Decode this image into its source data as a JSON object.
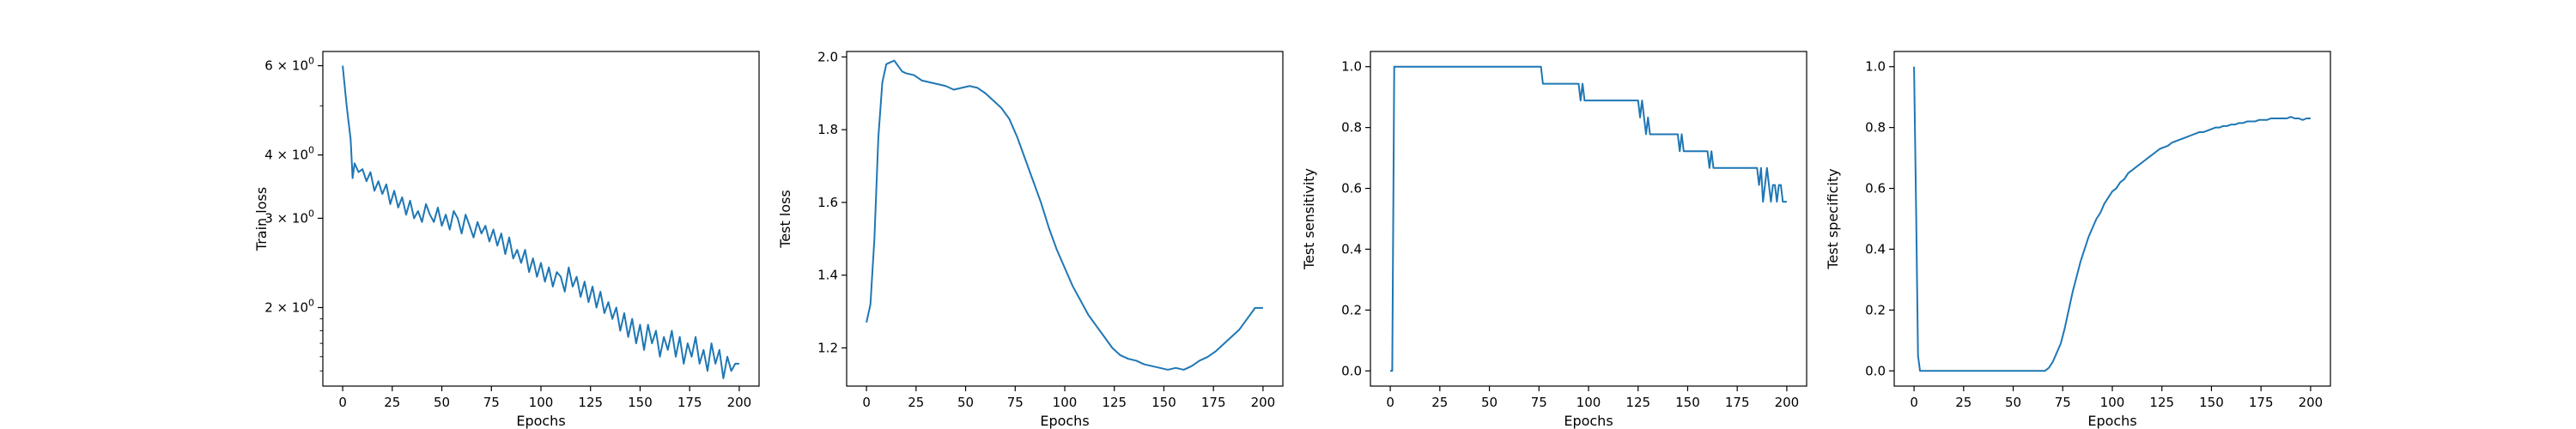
{
  "colors": {
    "series": "#1f77b4",
    "axis": "#000000",
    "background": "#ffffff"
  },
  "chart_data": [
    {
      "type": "line",
      "xlabel": "Epochs",
      "ylabel": "Train loss",
      "yscale": "log",
      "xlim": [
        -10,
        210
      ],
      "ylim": [
        1.4,
        6.4
      ],
      "grid": false,
      "xticks": [
        0,
        25,
        50,
        75,
        100,
        125,
        150,
        175,
        200
      ],
      "yticks": [
        {
          "value": 2,
          "base": "2 × 10",
          "exp": "0"
        },
        {
          "value": 3,
          "base": "3 × 10",
          "exp": "0"
        },
        {
          "value": 4,
          "base": "4 × 10",
          "exp": "0"
        },
        {
          "value": 6,
          "base": "6 × 10",
          "exp": "0"
        }
      ],
      "x": [
        0,
        2,
        4,
        5,
        6,
        8,
        10,
        12,
        14,
        16,
        18,
        20,
        22,
        24,
        26,
        28,
        30,
        32,
        34,
        36,
        38,
        40,
        42,
        44,
        46,
        48,
        50,
        52,
        54,
        56,
        58,
        60,
        62,
        64,
        66,
        68,
        70,
        72,
        74,
        76,
        78,
        80,
        82,
        84,
        86,
        88,
        90,
        92,
        94,
        96,
        98,
        100,
        102,
        104,
        106,
        108,
        110,
        112,
        114,
        116,
        118,
        120,
        122,
        124,
        126,
        128,
        130,
        132,
        134,
        136,
        138,
        140,
        142,
        144,
        146,
        148,
        150,
        152,
        154,
        156,
        158,
        160,
        162,
        164,
        166,
        168,
        170,
        172,
        174,
        176,
        178,
        180,
        182,
        184,
        186,
        188,
        190,
        192,
        194,
        196,
        198,
        200
      ],
      "values": [
        6.0,
        5.0,
        4.3,
        3.6,
        3.85,
        3.7,
        3.75,
        3.55,
        3.7,
        3.4,
        3.55,
        3.35,
        3.5,
        3.2,
        3.4,
        3.15,
        3.3,
        3.05,
        3.25,
        3.0,
        3.1,
        2.95,
        3.2,
        3.05,
        2.95,
        3.15,
        2.9,
        3.05,
        2.85,
        3.1,
        3.0,
        2.8,
        3.05,
        2.9,
        2.75,
        2.95,
        2.8,
        2.9,
        2.7,
        2.85,
        2.65,
        2.8,
        2.55,
        2.75,
        2.5,
        2.6,
        2.45,
        2.6,
        2.35,
        2.5,
        2.3,
        2.45,
        2.25,
        2.4,
        2.2,
        2.35,
        2.3,
        2.15,
        2.4,
        2.2,
        2.3,
        2.1,
        2.25,
        2.05,
        2.2,
        2.0,
        2.15,
        1.95,
        2.05,
        1.9,
        2.0,
        1.8,
        1.95,
        1.75,
        1.9,
        1.7,
        1.85,
        1.65,
        1.85,
        1.7,
        1.8,
        1.6,
        1.75,
        1.65,
        1.8,
        1.6,
        1.75,
        1.55,
        1.7,
        1.6,
        1.75,
        1.55,
        1.65,
        1.5,
        1.7,
        1.55,
        1.65,
        1.45,
        1.6,
        1.5,
        1.55,
        1.55
      ]
    },
    {
      "type": "line",
      "xlabel": "Epochs",
      "ylabel": "Test loss",
      "xlim": [
        -10,
        210
      ],
      "ylim": [
        1.095,
        2.015
      ],
      "grid": false,
      "xticks": [
        0,
        25,
        50,
        75,
        100,
        125,
        150,
        175,
        200
      ],
      "yticks": [
        1.2,
        1.4,
        1.6,
        1.8,
        2.0
      ],
      "x": [
        0,
        2,
        4,
        6,
        8,
        10,
        12,
        14,
        16,
        18,
        20,
        24,
        28,
        32,
        36,
        40,
        44,
        48,
        52,
        56,
        60,
        64,
        68,
        72,
        76,
        80,
        84,
        88,
        92,
        96,
        100,
        104,
        108,
        112,
        116,
        120,
        124,
        128,
        132,
        136,
        140,
        144,
        148,
        152,
        156,
        160,
        164,
        168,
        172,
        176,
        180,
        184,
        188,
        192,
        196,
        200
      ],
      "values": [
        1.27,
        1.32,
        1.5,
        1.78,
        1.93,
        1.98,
        1.985,
        1.99,
        1.975,
        1.96,
        1.955,
        1.95,
        1.935,
        1.93,
        1.925,
        1.92,
        1.91,
        1.915,
        1.92,
        1.915,
        1.9,
        1.88,
        1.86,
        1.83,
        1.78,
        1.72,
        1.66,
        1.6,
        1.53,
        1.47,
        1.42,
        1.37,
        1.33,
        1.29,
        1.26,
        1.23,
        1.2,
        1.18,
        1.17,
        1.165,
        1.155,
        1.15,
        1.145,
        1.14,
        1.145,
        1.14,
        1.15,
        1.165,
        1.175,
        1.19,
        1.21,
        1.23,
        1.25,
        1.28,
        1.31,
        1.31
      ]
    },
    {
      "type": "line",
      "xlabel": "Epochs",
      "ylabel": "Test sensitivity",
      "xlim": [
        -10,
        210
      ],
      "ylim": [
        -0.05,
        1.05
      ],
      "grid": false,
      "xticks": [
        0,
        25,
        50,
        75,
        100,
        125,
        150,
        175,
        200
      ],
      "yticks": [
        0.0,
        0.2,
        0.4,
        0.6,
        0.8,
        1.0
      ],
      "x": [
        0,
        1,
        2,
        3,
        76,
        77,
        95,
        96,
        97,
        98,
        99,
        100,
        125,
        126,
        127,
        128,
        129,
        130,
        131,
        132,
        145,
        146,
        147,
        148,
        150,
        151,
        160,
        161,
        162,
        163,
        185,
        186,
        187,
        188,
        189,
        190,
        191,
        192,
        193,
        194,
        195,
        196,
        197,
        198,
        199,
        200
      ],
      "values": [
        0.0,
        0.0,
        1.0,
        1.0,
        1.0,
        0.944,
        0.944,
        0.889,
        0.944,
        0.889,
        0.889,
        0.889,
        0.889,
        0.833,
        0.889,
        0.833,
        0.778,
        0.833,
        0.778,
        0.778,
        0.778,
        0.722,
        0.778,
        0.722,
        0.722,
        0.722,
        0.722,
        0.667,
        0.722,
        0.667,
        0.667,
        0.611,
        0.667,
        0.556,
        0.611,
        0.667,
        0.611,
        0.556,
        0.611,
        0.611,
        0.556,
        0.611,
        0.611,
        0.556,
        0.556,
        0.556
      ]
    },
    {
      "type": "line",
      "xlabel": "Epochs",
      "ylabel": "Test specificity",
      "xlim": [
        -10,
        210
      ],
      "ylim": [
        -0.05,
        1.05
      ],
      "grid": false,
      "xticks": [
        0,
        25,
        50,
        75,
        100,
        125,
        150,
        175,
        200
      ],
      "yticks": [
        0.0,
        0.2,
        0.4,
        0.6,
        0.8,
        1.0
      ],
      "x": [
        0,
        1,
        2,
        3,
        4,
        66,
        68,
        70,
        72,
        74,
        76,
        78,
        80,
        82,
        84,
        86,
        88,
        90,
        92,
        94,
        96,
        98,
        100,
        102,
        104,
        106,
        108,
        110,
        112,
        114,
        116,
        118,
        120,
        122,
        124,
        126,
        128,
        130,
        132,
        134,
        136,
        138,
        140,
        142,
        144,
        146,
        148,
        150,
        152,
        154,
        156,
        158,
        160,
        162,
        164,
        166,
        168,
        170,
        172,
        174,
        176,
        178,
        180,
        182,
        184,
        186,
        188,
        190,
        192,
        194,
        196,
        198,
        200
      ],
      "values": [
        1.0,
        0.55,
        0.05,
        0.0,
        0.0,
        0.0,
        0.01,
        0.03,
        0.06,
        0.09,
        0.14,
        0.2,
        0.26,
        0.31,
        0.36,
        0.4,
        0.44,
        0.47,
        0.5,
        0.52,
        0.55,
        0.57,
        0.59,
        0.6,
        0.62,
        0.63,
        0.65,
        0.66,
        0.67,
        0.68,
        0.69,
        0.7,
        0.71,
        0.72,
        0.73,
        0.735,
        0.74,
        0.75,
        0.755,
        0.76,
        0.765,
        0.77,
        0.775,
        0.78,
        0.785,
        0.785,
        0.79,
        0.795,
        0.8,
        0.8,
        0.805,
        0.805,
        0.81,
        0.81,
        0.815,
        0.815,
        0.82,
        0.82,
        0.82,
        0.825,
        0.825,
        0.825,
        0.83,
        0.83,
        0.83,
        0.83,
        0.83,
        0.835,
        0.83,
        0.83,
        0.825,
        0.83,
        0.83
      ]
    }
  ]
}
